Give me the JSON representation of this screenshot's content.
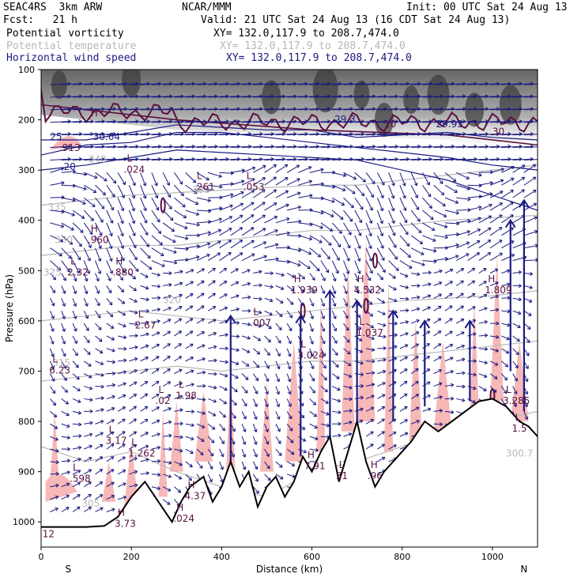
{
  "header": {
    "model": "SEAC4RS  3km ARW",
    "org": "NCAR/MMM",
    "init": "Init: 00 UTC Sat 24 Aug 13",
    "fcst": "Fcst:   21 h",
    "valid": "Valid: 21 UTC Sat 24 Aug 13 (16 CDT Sat 24 Aug 13)",
    "fields": [
      {
        "name": "Potential vorticity",
        "xy": "XY= 132.0,117.9 to 208.7,474.0"
      },
      {
        "name": "Potential temperature",
        "xy": "XY= 132.0,117.9 to 208.7,474.0"
      },
      {
        "name": "Horizontal wind speed",
        "xy": "XY= 132.0,117.9 to 208.7,474.0"
      }
    ]
  },
  "colors": {
    "pv": "#5a1040",
    "theta": "#b8b8b8",
    "wind": "#1a1a80",
    "shade": "#f7b8b8",
    "terrain": "#000000",
    "fig_text": "#000000"
  },
  "chart_data": {
    "type": "cross-section",
    "xlabel": "Distance (km)",
    "ylabel": "Pressure (hPa)",
    "xlim": [
      0,
      1100
    ],
    "ylim": [
      1050,
      100
    ],
    "x_ticks": [
      "0",
      "200",
      "400",
      "600",
      "800",
      "1000"
    ],
    "y_ticks": [
      "100",
      "200",
      "300",
      "400",
      "500",
      "600",
      "700",
      "800",
      "900",
      "1000"
    ],
    "end_labels": {
      "left": "S",
      "right": "N"
    },
    "terrain": [
      [
        0,
        1010
      ],
      [
        50,
        1010
      ],
      [
        100,
        1010
      ],
      [
        140,
        1008
      ],
      [
        170,
        990
      ],
      [
        200,
        950
      ],
      [
        230,
        920
      ],
      [
        260,
        960
      ],
      [
        290,
        1000
      ],
      [
        310,
        960
      ],
      [
        330,
        930
      ],
      [
        360,
        910
      ],
      [
        380,
        960
      ],
      [
        400,
        930
      ],
      [
        420,
        880
      ],
      [
        440,
        930
      ],
      [
        460,
        900
      ],
      [
        480,
        970
      ],
      [
        500,
        930
      ],
      [
        520,
        910
      ],
      [
        540,
        950
      ],
      [
        560,
        920
      ],
      [
        580,
        870
      ],
      [
        600,
        900
      ],
      [
        620,
        860
      ],
      [
        640,
        830
      ],
      [
        660,
        920
      ],
      [
        680,
        860
      ],
      [
        700,
        800
      ],
      [
        720,
        880
      ],
      [
        740,
        930
      ],
      [
        760,
        900
      ],
      [
        790,
        870
      ],
      [
        820,
        840
      ],
      [
        850,
        800
      ],
      [
        880,
        820
      ],
      [
        910,
        800
      ],
      [
        940,
        780
      ],
      [
        970,
        760
      ],
      [
        1000,
        755
      ],
      [
        1030,
        770
      ],
      [
        1060,
        800
      ],
      [
        1080,
        810
      ],
      [
        1100,
        830
      ]
    ],
    "theta_labels": [
      {
        "text": "340",
        "x": 105,
        "p": 285
      },
      {
        "text": "335",
        "x": 335,
        "p": 345
      },
      {
        "text": "335",
        "x": 15,
        "p": 380
      },
      {
        "text": "330",
        "x": 30,
        "p": 445
      },
      {
        "text": "325",
        "x": 5,
        "p": 510
      },
      {
        "text": "320",
        "x": 270,
        "p": 565
      },
      {
        "text": "315",
        "x": 25,
        "p": 690
      },
      {
        "text": "305",
        "x": 90,
        "p": 970
      },
      {
        "text": "300.7",
        "x": 1030,
        "p": 870
      }
    ],
    "wind_labels": [
      {
        "text": "25",
        "x": 20,
        "p": 240
      },
      {
        "text": "30.64",
        "x": 115,
        "p": 240
      },
      {
        "text": "20",
        "x": 50,
        "p": 300
      },
      {
        "text": "29.3",
        "x": 650,
        "p": 205
      },
      {
        "text": "29.93",
        "x": 875,
        "p": 215
      }
    ],
    "pv_labels": [
      {
        "text": ".913",
        "x": 40,
        "p": 262
      },
      {
        "text": "30",
        "x": 1000,
        "p": 230
      },
      {
        "text": "10",
        "x": 760,
        "p": 215
      }
    ],
    "extrema": [
      {
        "mark": "H",
        "x": 110,
        "p": 215
      },
      {
        "mark": "L",
        "x": 190,
        "p": 305,
        "value": ".024"
      },
      {
        "mark": "L",
        "x": 345,
        "p": 340,
        "value": ".261"
      },
      {
        "mark": "L",
        "x": 455,
        "p": 340,
        "value": ".053"
      },
      {
        "mark": "H",
        "x": 110,
        "p": 445,
        "value": ".960"
      },
      {
        "mark": "L",
        "x": 65,
        "p": 510,
        "value": "2.32"
      },
      {
        "mark": "H",
        "x": 165,
        "p": 510,
        "value": ".880"
      },
      {
        "mark": "H",
        "x": 560,
        "p": 545,
        "value": "1.939"
      },
      {
        "mark": "H",
        "x": 700,
        "p": 545,
        "value": "4.532"
      },
      {
        "mark": "H",
        "x": 990,
        "p": 545,
        "value": "1.809"
      },
      {
        "mark": "L",
        "x": 215,
        "p": 615,
        "value": "2.67"
      },
      {
        "mark": "L",
        "x": 470,
        "p": 610,
        "value": ".007"
      },
      {
        "mark": "L",
        "x": 705,
        "p": 630,
        "value": "1.037"
      },
      {
        "mark": "L",
        "x": 575,
        "p": 675,
        "value": "3.024"
      },
      {
        "mark": "L",
        "x": 25,
        "p": 705,
        "value": "6.23"
      },
      {
        "mark": "L",
        "x": 260,
        "p": 765,
        "value": ".02"
      },
      {
        "mark": "L",
        "x": 305,
        "p": 755,
        "value": "1.98"
      },
      {
        "mark": "L",
        "x": 1030,
        "p": 765,
        "value": "3.285"
      },
      {
        "mark": "L",
        "x": 150,
        "p": 845,
        "value": "3.17"
      },
      {
        "mark": "L",
        "x": 200,
        "p": 870,
        "value": "1.262"
      },
      {
        "mark": "H",
        "x": 590,
        "p": 895,
        "value": "7.91"
      },
      {
        "mark": "L",
        "x": 660,
        "p": 915,
        "value": "31"
      },
      {
        "mark": "H",
        "x": 730,
        "p": 915,
        "value": ".96"
      },
      {
        "mark": "L",
        "x": 70,
        "p": 920,
        "value": ".598"
      },
      {
        "mark": "H",
        "x": 325,
        "p": 955,
        "value": "4.37"
      },
      {
        "mark": "H",
        "x": 300,
        "p": 1000,
        "value": ".024"
      },
      {
        "mark": "H",
        "x": 170,
        "p": 1010,
        "value": "3.73"
      },
      {
        "mark": "L",
        "x": 1050,
        "p": 820,
        "value": "1.5"
      },
      {
        "mark": "",
        "x": 10,
        "p": 1030,
        "value": "12"
      }
    ]
  }
}
